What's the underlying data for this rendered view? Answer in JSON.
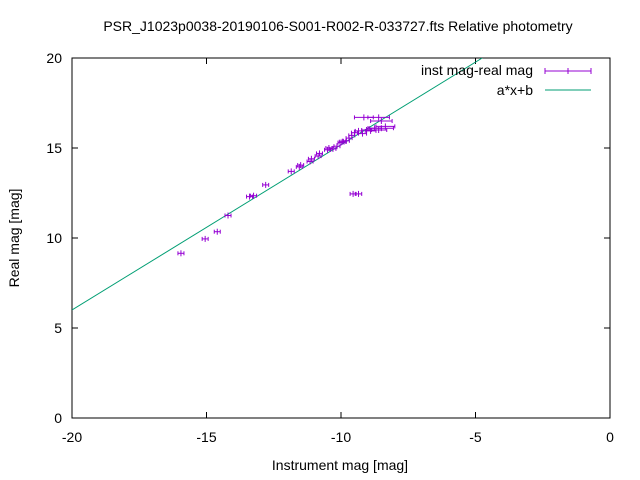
{
  "chart_data": {
    "type": "scatter",
    "title": "PSR_J1023p0038-20190106-S001-R002-R-033727.fts Relative photometry",
    "xlabel": "Instrument mag [mag]",
    "ylabel": "Real mag [mag]",
    "xlim": [
      -20,
      0
    ],
    "ylim": [
      0,
      20
    ],
    "xticks": [
      -20,
      -15,
      -10,
      -5,
      0
    ],
    "yticks": [
      0,
      5,
      10,
      15,
      20
    ],
    "xtick_labels": [
      "-20",
      "-15",
      "-10",
      "-5",
      "0"
    ],
    "ytick_labels": [
      "0",
      "5",
      "10",
      "15",
      "20"
    ],
    "grid": false,
    "legend_position": "top-right",
    "series": [
      {
        "name": "inst mag-real mag",
        "kind": "points-with-xerror",
        "color": "#9400d3",
        "points": [
          {
            "x": -15.95,
            "y": 9.15,
            "xerr": 0.02
          },
          {
            "x": -15.05,
            "y": 9.95,
            "xerr": 0.02
          },
          {
            "x": -14.6,
            "y": 10.35,
            "xerr": 0.02
          },
          {
            "x": -14.2,
            "y": 11.25,
            "xerr": 0.02
          },
          {
            "x": -13.4,
            "y": 12.3,
            "xerr": 0.03
          },
          {
            "x": -13.25,
            "y": 12.35,
            "xerr": 0.03
          },
          {
            "x": -12.8,
            "y": 12.95,
            "xerr": 0.03
          },
          {
            "x": -11.85,
            "y": 13.7,
            "xerr": 0.03
          },
          {
            "x": -11.55,
            "y": 13.95,
            "xerr": 0.03
          },
          {
            "x": -11.5,
            "y": 14.05,
            "xerr": 0.03
          },
          {
            "x": -11.15,
            "y": 14.25,
            "xerr": 0.03
          },
          {
            "x": -11.1,
            "y": 14.4,
            "xerr": 0.03
          },
          {
            "x": -10.85,
            "y": 14.55,
            "xerr": 0.04
          },
          {
            "x": -10.8,
            "y": 14.7,
            "xerr": 0.04
          },
          {
            "x": -10.5,
            "y": 14.9,
            "xerr": 0.04
          },
          {
            "x": -10.45,
            "y": 15.0,
            "xerr": 0.04
          },
          {
            "x": -10.3,
            "y": 14.95,
            "xerr": 0.05
          },
          {
            "x": -10.15,
            "y": 15.1,
            "xerr": 0.05
          },
          {
            "x": -10.0,
            "y": 15.3,
            "xerr": 0.05
          },
          {
            "x": -9.95,
            "y": 15.35,
            "xerr": 0.06
          },
          {
            "x": -9.8,
            "y": 15.4,
            "xerr": 0.07
          },
          {
            "x": -9.7,
            "y": 15.55,
            "xerr": 0.08
          },
          {
            "x": -9.6,
            "y": 15.7,
            "xerr": 0.08
          },
          {
            "x": -9.5,
            "y": 15.85,
            "xerr": 0.1
          },
          {
            "x": -9.35,
            "y": 15.95,
            "xerr": 0.12
          },
          {
            "x": -9.2,
            "y": 15.8,
            "xerr": 0.15
          },
          {
            "x": -9.05,
            "y": 16.0,
            "xerr": 0.18
          },
          {
            "x": -8.9,
            "y": 15.95,
            "xerr": 0.2
          },
          {
            "x": -8.75,
            "y": 16.1,
            "xerr": 0.25
          },
          {
            "x": -8.6,
            "y": 16.0,
            "xerr": 0.3
          },
          {
            "x": -8.5,
            "y": 16.1,
            "xerr": 0.45
          },
          {
            "x": -8.35,
            "y": 16.2,
            "xerr": 0.35
          },
          {
            "x": -8.5,
            "y": 16.5,
            "xerr": 0.4
          },
          {
            "x": -8.6,
            "y": 16.7,
            "xerr": 0.4
          },
          {
            "x": -9.15,
            "y": 16.7,
            "xerr": 0.35
          },
          {
            "x": -9.55,
            "y": 12.45,
            "xerr": 0.1
          },
          {
            "x": -9.35,
            "y": 12.45,
            "xerr": 0.12
          }
        ]
      },
      {
        "name": "a*x+b",
        "kind": "line",
        "color": "#009e73",
        "x": [
          -20,
          -4.75
        ],
        "y": [
          6.0,
          20.0
        ]
      }
    ]
  }
}
